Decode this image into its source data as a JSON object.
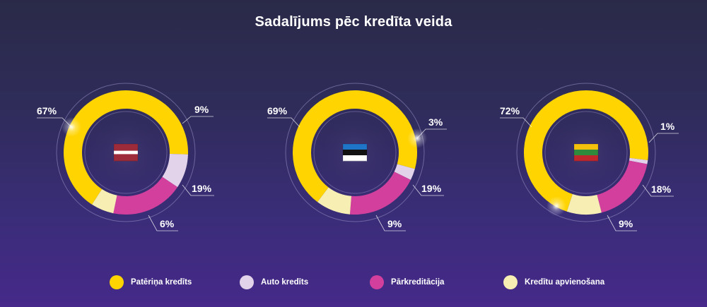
{
  "title": "Sadalījums pēc kredīta veida",
  "colors": {
    "Patēriņa kredīts": "#ffd400",
    "Auto kredīts": "#e3d3ea",
    "Pārkreditācija": "#d23f9d",
    "Kredītu apvienošana": "#f7eeb3"
  },
  "legend": [
    {
      "label": "Patēriņa kredīts",
      "color": "#ffd400"
    },
    {
      "label": "Auto kredīts",
      "color": "#e3d3ea"
    },
    {
      "label": "Pārkreditācija",
      "color": "#d23f9d"
    },
    {
      "label": "Kredītu apvienošana",
      "color": "#f7eeb3"
    }
  ],
  "chart_data": [
    {
      "type": "pie",
      "country_flag": "latvia-flag",
      "categories": [
        "Patēriņa kredīts",
        "Auto kredīts",
        "Pārkreditācija",
        "Kredītu apvienošana"
      ],
      "values": [
        67,
        9,
        19,
        6
      ],
      "labels": [
        "67%",
        "9%",
        "19%",
        "6%"
      ]
    },
    {
      "type": "pie",
      "country_flag": "estonia-flag",
      "categories": [
        "Patēriņa kredīts",
        "Auto kredīts",
        "Pārkreditācija",
        "Kredītu apvienošana"
      ],
      "values": [
        69,
        3,
        19,
        9
      ],
      "labels": [
        "69%",
        "3%",
        "19%",
        "9%"
      ]
    },
    {
      "type": "pie",
      "country_flag": "lithuania-flag",
      "categories": [
        "Patēriņa kredīts",
        "Auto kredīts",
        "Pārkreditācija",
        "Kredītu apvienošana"
      ],
      "values": [
        72,
        1,
        18,
        9
      ],
      "labels": [
        "72%",
        "1%",
        "18%",
        "9%"
      ]
    }
  ]
}
